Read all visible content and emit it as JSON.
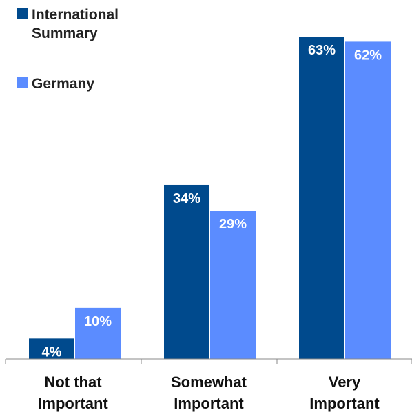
{
  "chart_data": {
    "type": "bar",
    "title": "",
    "xlabel": "",
    "ylabel": "",
    "categories": [
      "Not that Important",
      "Somewhat Important",
      "Very Important"
    ],
    "category_lines": [
      [
        "Not that",
        "Important"
      ],
      [
        "Somewhat",
        "Important"
      ],
      [
        "Very",
        "Important"
      ]
    ],
    "series": [
      {
        "name": "International Summary",
        "values": [
          4,
          34,
          63
        ],
        "labels": [
          "4%",
          "34%",
          "63%"
        ],
        "color": "#004a8d"
      },
      {
        "name": "Germany",
        "values": [
          10,
          29,
          62
        ],
        "labels": [
          "10%",
          "29%",
          "62%"
        ],
        "color": "#5b8cff"
      }
    ],
    "ylim": [
      0,
      63
    ],
    "legend_position": "top-left",
    "grid": false,
    "data_label_color": "#ffffff"
  }
}
